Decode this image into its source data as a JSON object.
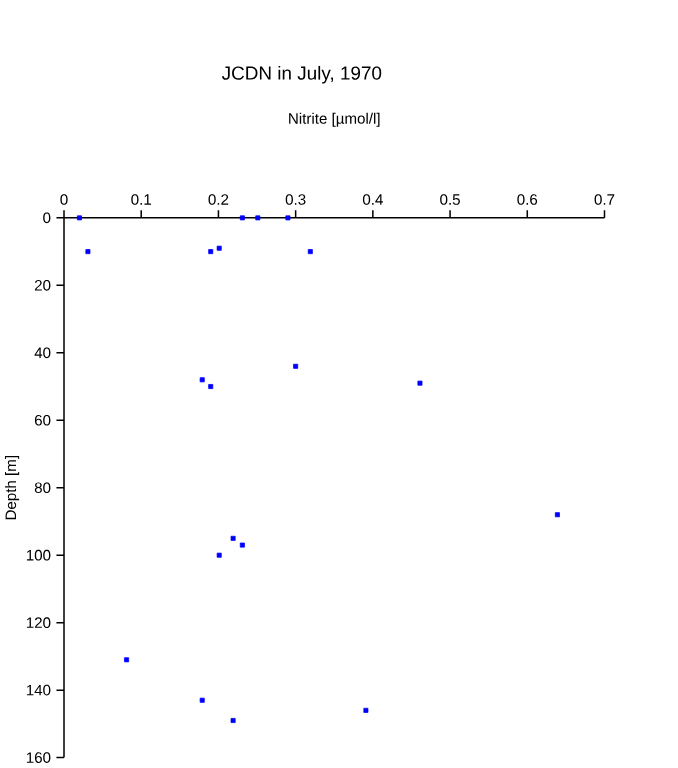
{
  "chart_data": {
    "type": "scatter",
    "title": "JCDN in July, 1970",
    "xlabel": "Nitrite [µmol/l]",
    "ylabel": "Depth [m]",
    "x": [
      0.02,
      0.231,
      0.251,
      0.29,
      0.031,
      0.19,
      0.201,
      0.319,
      0.179,
      0.19,
      0.3,
      0.461,
      0.639,
      0.219,
      0.231,
      0.201,
      0.081,
      0.179,
      0.219,
      0.391
    ],
    "values": [
      0,
      0,
      0,
      0,
      10,
      10,
      9,
      10,
      48,
      50,
      44,
      49,
      88,
      95,
      97,
      100,
      131,
      143,
      149,
      146
    ],
    "color": "#0000ff",
    "marker": "square",
    "xlim": [
      0,
      0.7
    ],
    "xticks": [
      0,
      0.1,
      0.2,
      0.3,
      0.4,
      0.5,
      0.6,
      0.7
    ],
    "ylim": [
      160,
      0
    ],
    "yticks": [
      0,
      20,
      40,
      60,
      80,
      100,
      120,
      140,
      160
    ],
    "grid": false
  }
}
